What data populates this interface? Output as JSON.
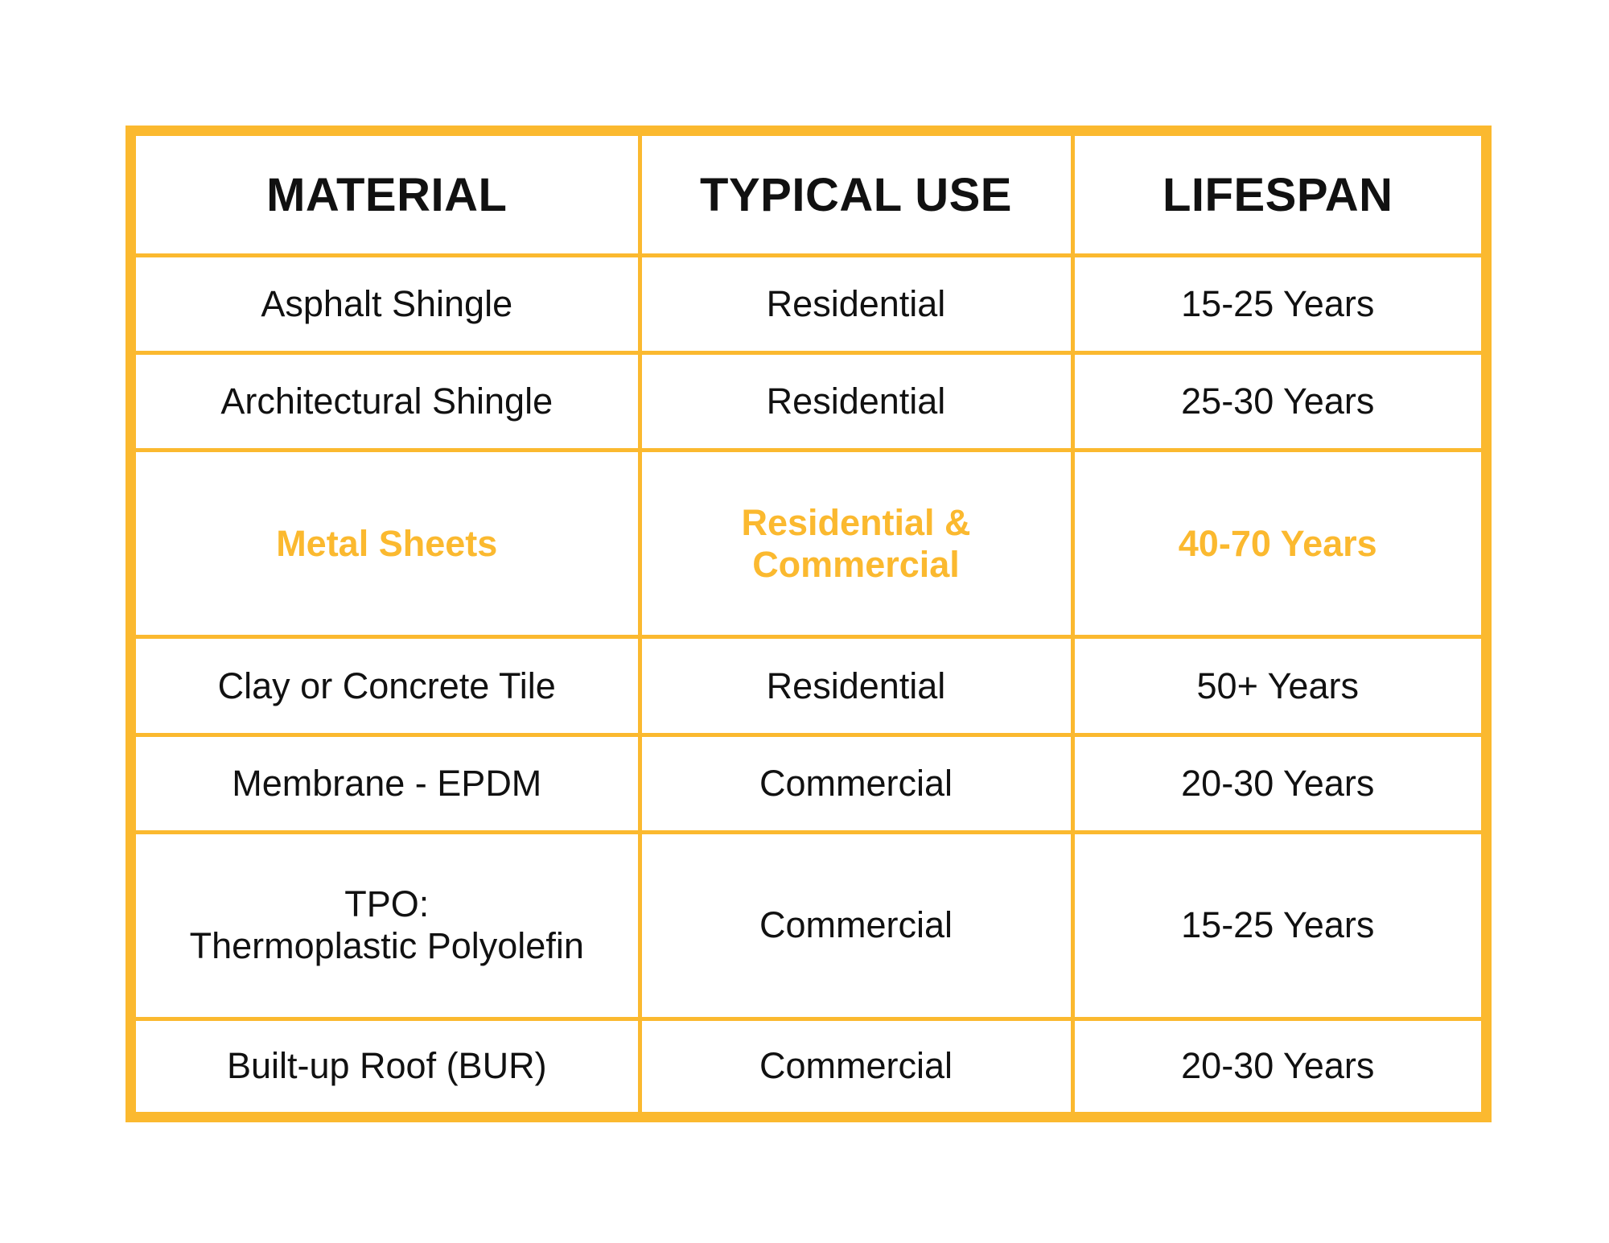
{
  "table": {
    "columns": [
      "MATERIAL",
      "TYPICAL USE",
      "LIFESPAN"
    ],
    "rows": [
      [
        "Asphalt Shingle",
        "Residential",
        "15-25 Years"
      ],
      [
        "Architectural Shingle",
        "Residential",
        "25-30 Years"
      ],
      [
        "Metal Sheets",
        "Residential & Commercial",
        "40-70 Years"
      ],
      [
        "Clay or Concrete Tile",
        "Residential",
        "50+ Years"
      ],
      [
        "Membrane - EPDM",
        "Commercial",
        "20-30 Years"
      ],
      [
        "TPO:\nThermoplastic Polyolefin",
        "Commercial",
        "15-25 Years"
      ],
      [
        "Built-up Roof (BUR)",
        "Commercial",
        "20-30 Years"
      ]
    ]
  }
}
